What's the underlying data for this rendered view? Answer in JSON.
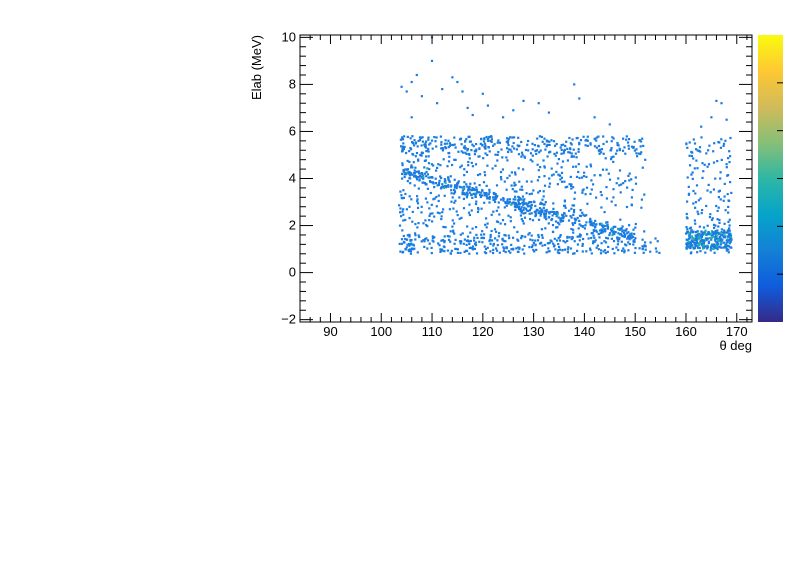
{
  "chart_data": {
    "type": "heatmap",
    "title": "",
    "xlabel": "θ deg",
    "ylabel": "Elab (MeV)",
    "xlim": [
      84,
      173
    ],
    "ylim": [
      -2.1,
      10.1
    ],
    "x_ticks": [
      "90",
      "100",
      "110",
      "120",
      "130",
      "140",
      "150",
      "160",
      "170"
    ],
    "y_ticks": [
      "−2",
      "0",
      "2",
      "4",
      "6",
      "8",
      "10"
    ],
    "grid": false,
    "colorbar": {
      "present": true,
      "palette": [
        "#352a87",
        "#0f5cdd",
        "#1481d6",
        "#06a4ca",
        "#2eb7a4",
        "#87bf77",
        "#d1bb59",
        "#fec832",
        "#f9fb0e"
      ]
    },
    "point_color": "#1a7ce0",
    "dense_color": "#26b5a4",
    "regions": [
      {
        "name": "band-uniform",
        "x_range": [
          103.5,
          152
        ],
        "y_range": [
          0.8,
          5.8
        ]
      },
      {
        "name": "kinematic-line",
        "x_from": 104,
        "y_from": 4.3,
        "x_to": 150,
        "y_to": 1.5
      },
      {
        "name": "low-band",
        "x_range": [
          104,
          155
        ],
        "y_range": [
          0.8,
          1.6
        ]
      },
      {
        "name": "upper-band",
        "x_range": [
          104,
          152
        ],
        "y_range": [
          5.0,
          5.8
        ]
      },
      {
        "name": "right-block",
        "x_range": [
          160,
          169
        ],
        "y_range": [
          0.8,
          5.8
        ]
      },
      {
        "name": "right-dense",
        "x_range": [
          160,
          169
        ],
        "y_range": [
          1.0,
          1.8
        ]
      }
    ],
    "sparse_points": [
      [
        104,
        7.9
      ],
      [
        105,
        7.7
      ],
      [
        106,
        8.1
      ],
      [
        107,
        8.4
      ],
      [
        108,
        7.5
      ],
      [
        110,
        9.0
      ],
      [
        111,
        7.2
      ],
      [
        112,
        7.8
      ],
      [
        114,
        8.3
      ],
      [
        115,
        8.1
      ],
      [
        116,
        7.7
      ],
      [
        117,
        7.0
      ],
      [
        118,
        6.7
      ],
      [
        120,
        7.6
      ],
      [
        121,
        7.1
      ],
      [
        124,
        6.6
      ],
      [
        126,
        6.9
      ],
      [
        128,
        7.3
      ],
      [
        131,
        7.2
      ],
      [
        133,
        6.8
      ],
      [
        138,
        8.0
      ],
      [
        139,
        7.4
      ],
      [
        142,
        6.6
      ],
      [
        145,
        6.3
      ],
      [
        166,
        7.3
      ],
      [
        167,
        7.2
      ],
      [
        165,
        6.6
      ],
      [
        168,
        6.5
      ],
      [
        163,
        6.2
      ],
      [
        106,
        6.6
      ],
      [
        110,
        10.0
      ]
    ]
  }
}
